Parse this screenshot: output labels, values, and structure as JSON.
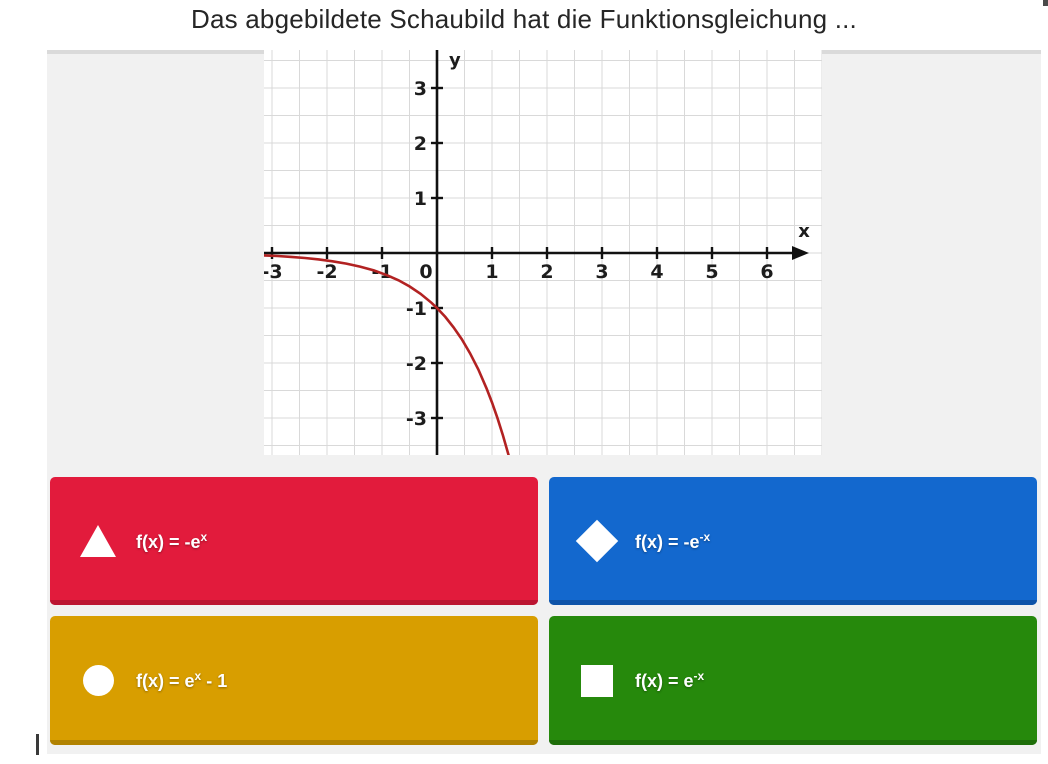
{
  "question": {
    "title": "Das abgebildete Schaubild hat die Funktionsgleichung ..."
  },
  "chart_data": {
    "type": "line",
    "title": "",
    "xlabel": "x",
    "ylabel": "y",
    "x_ticks": [
      -3,
      -2,
      -1,
      0,
      1,
      2,
      3,
      4,
      5,
      6
    ],
    "y_ticks": [
      3,
      2,
      1,
      -1,
      -2,
      -3
    ],
    "x_range": [
      -3.15,
      7.0
    ],
    "y_range": [
      -3.67,
      3.69
    ],
    "grid": true,
    "grid_step": 0.5,
    "axis_color": "#111111",
    "grid_color": "#d9d9d9",
    "curve_color": "#b22222",
    "series": [
      {
        "name": "f(x) = -e^x",
        "points": [
          [
            -3.15,
            -0.043
          ],
          [
            -2.9,
            -0.055
          ],
          [
            -2.65,
            -0.071
          ],
          [
            -2.4,
            -0.091
          ],
          [
            -2.15,
            -0.116
          ],
          [
            -1.9,
            -0.15
          ],
          [
            -1.65,
            -0.192
          ],
          [
            -1.4,
            -0.247
          ],
          [
            -1.15,
            -0.317
          ],
          [
            -0.9,
            -0.407
          ],
          [
            -0.7,
            -0.497
          ],
          [
            -0.5,
            -0.607
          ],
          [
            -0.3,
            -0.741
          ],
          [
            -0.1,
            -0.905
          ],
          [
            0,
            -1.0
          ],
          [
            0.15,
            -1.162
          ],
          [
            0.3,
            -1.35
          ],
          [
            0.45,
            -1.568
          ],
          [
            0.6,
            -1.822
          ],
          [
            0.75,
            -2.117
          ],
          [
            0.9,
            -2.46
          ],
          [
            1.0,
            -2.718
          ],
          [
            1.1,
            -3.004
          ],
          [
            1.2,
            -3.32
          ],
          [
            1.3,
            -3.669
          ]
        ]
      }
    ]
  },
  "answers": [
    {
      "shape": "triangle-icon",
      "color": "#e21b3c",
      "color_dark": "#bb1531",
      "base": "f(x) = -e",
      "sup": "x",
      "suffix": ""
    },
    {
      "shape": "diamond-icon",
      "color": "#1368ce",
      "color_dark": "#0e53a8",
      "base": "f(x) = -e",
      "sup": "-x",
      "suffix": ""
    },
    {
      "shape": "circle-icon",
      "color": "#d89e00",
      "color_dark": "#b18200",
      "base": "f(x) = e",
      "sup": "x",
      "suffix": " - 1"
    },
    {
      "shape": "square-icon",
      "color": "#26890c",
      "color_dark": "#1e6e0a",
      "base": "f(x) = e",
      "sup": "-x",
      "suffix": ""
    }
  ]
}
